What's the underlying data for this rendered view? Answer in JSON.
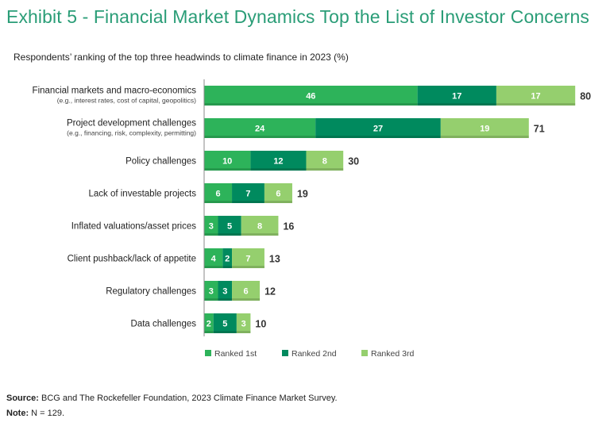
{
  "title": "Exhibit 5 - Financial Market Dynamics Top the List of Investor Concerns",
  "chart_data": {
    "type": "bar",
    "orientation": "horizontal",
    "stacked": true,
    "title": "Respondents’ ranking of the top three headwinds to climate finance in 2023 (%)",
    "categories": [
      {
        "label": "Financial markets and macro-economics",
        "sublabel": "(e.g., interest rates, cost of capital, geopolitics)"
      },
      {
        "label": "Project development challenges",
        "sublabel": "(e.g., financing, risk, complexity, permitting)"
      },
      {
        "label": "Policy challenges",
        "sublabel": ""
      },
      {
        "label": "Lack of investable projects",
        "sublabel": ""
      },
      {
        "label": "Inflated valuations/asset prices",
        "sublabel": ""
      },
      {
        "label": "Client pushback/lack of appetite",
        "sublabel": ""
      },
      {
        "label": "Regulatory challenges",
        "sublabel": ""
      },
      {
        "label": "Data challenges",
        "sublabel": ""
      }
    ],
    "series": [
      {
        "name": "Ranked 1st",
        "color": "#2db35a",
        "values": [
          46,
          24,
          10,
          6,
          3,
          4,
          3,
          2
        ]
      },
      {
        "name": "Ranked 2nd",
        "color": "#008a5e",
        "values": [
          17,
          27,
          12,
          7,
          5,
          2,
          3,
          5
        ]
      },
      {
        "name": "Ranked 3rd",
        "color": "#95cf6e",
        "values": [
          17,
          19,
          8,
          6,
          8,
          7,
          6,
          3
        ]
      }
    ],
    "totals": [
      80,
      71,
      30,
      19,
      16,
      13,
      12,
      10
    ],
    "xlim": [
      0,
      80
    ],
    "legend_position": "bottom",
    "grid": false
  },
  "footer": {
    "source_label": "Source:",
    "source_text": "BCG and The Rockefeller Foundation, 2023 Climate Finance Market Survey.",
    "note_label": "Note:",
    "note_text": "N = 129."
  }
}
